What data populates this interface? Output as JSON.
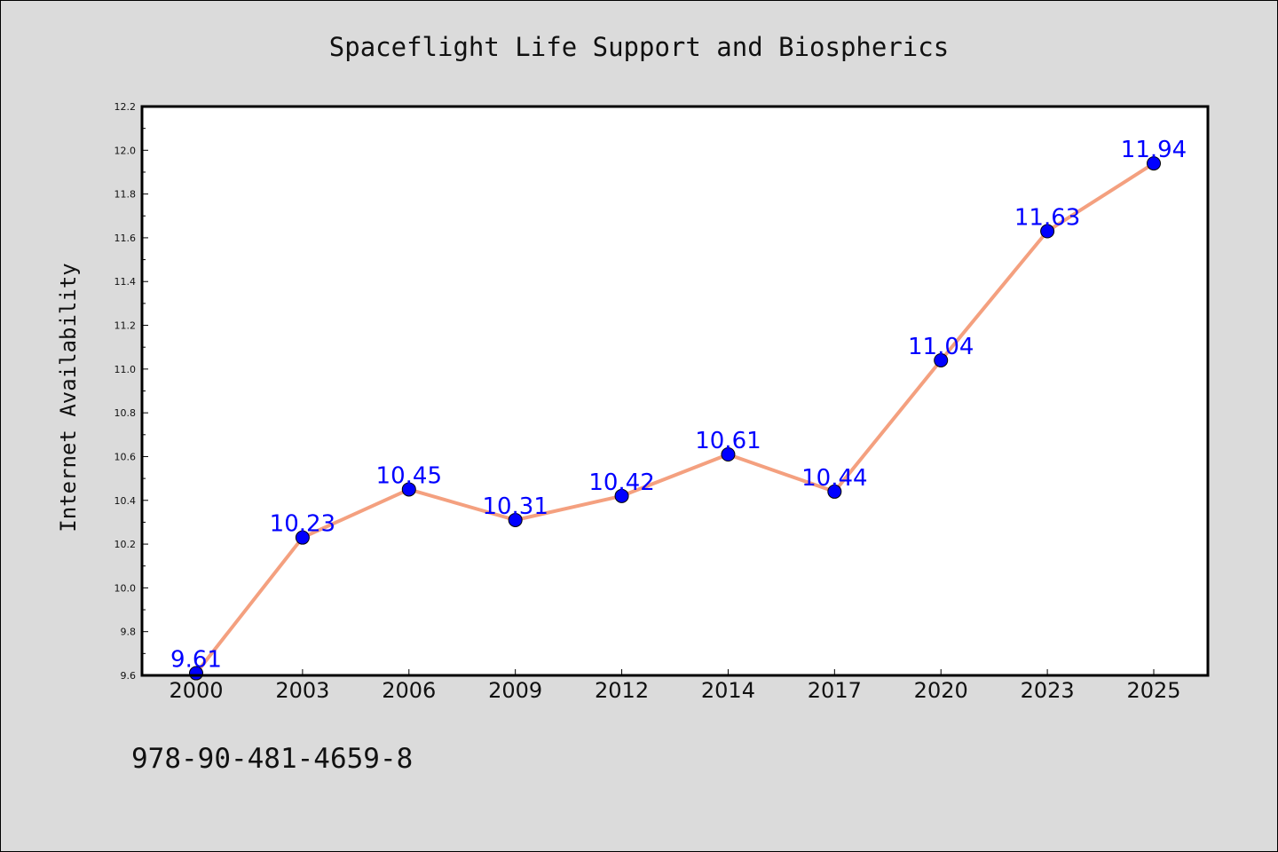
{
  "chart_data": {
    "type": "line",
    "title": "Spaceflight Life Support and Biospherics",
    "xlabel": "",
    "ylabel": "Internet Availability",
    "categories": [
      "2000",
      "2003",
      "2006",
      "2009",
      "2012",
      "2014",
      "2017",
      "2020",
      "2023",
      "2025"
    ],
    "series": [
      {
        "values": [
          9.61,
          10.23,
          10.45,
          10.31,
          10.42,
          10.61,
          10.44,
          11.04,
          11.63,
          11.94
        ],
        "labels": [
          "9.61",
          "10.23",
          "10.45",
          "10.31",
          "10.42",
          "10.61",
          "10.44",
          "11.04",
          "11.63",
          "11.94"
        ]
      }
    ],
    "ylim": [
      9.6,
      12.2
    ],
    "yticks": [
      "9.6",
      "9.8",
      "10.0",
      "10.2",
      "10.4",
      "10.6",
      "10.8",
      "11.0",
      "11.2",
      "11.4",
      "11.6",
      "11.8",
      "12.0",
      "12.2"
    ],
    "grid": false,
    "legend": "none",
    "colors": {
      "line": "#f4a07f",
      "marker": "#0000ff",
      "data_label": "#0000ff",
      "plot_background": "#ffffff",
      "page_background": "#dbdbdb"
    }
  },
  "footnote": "978-90-481-4659-8"
}
